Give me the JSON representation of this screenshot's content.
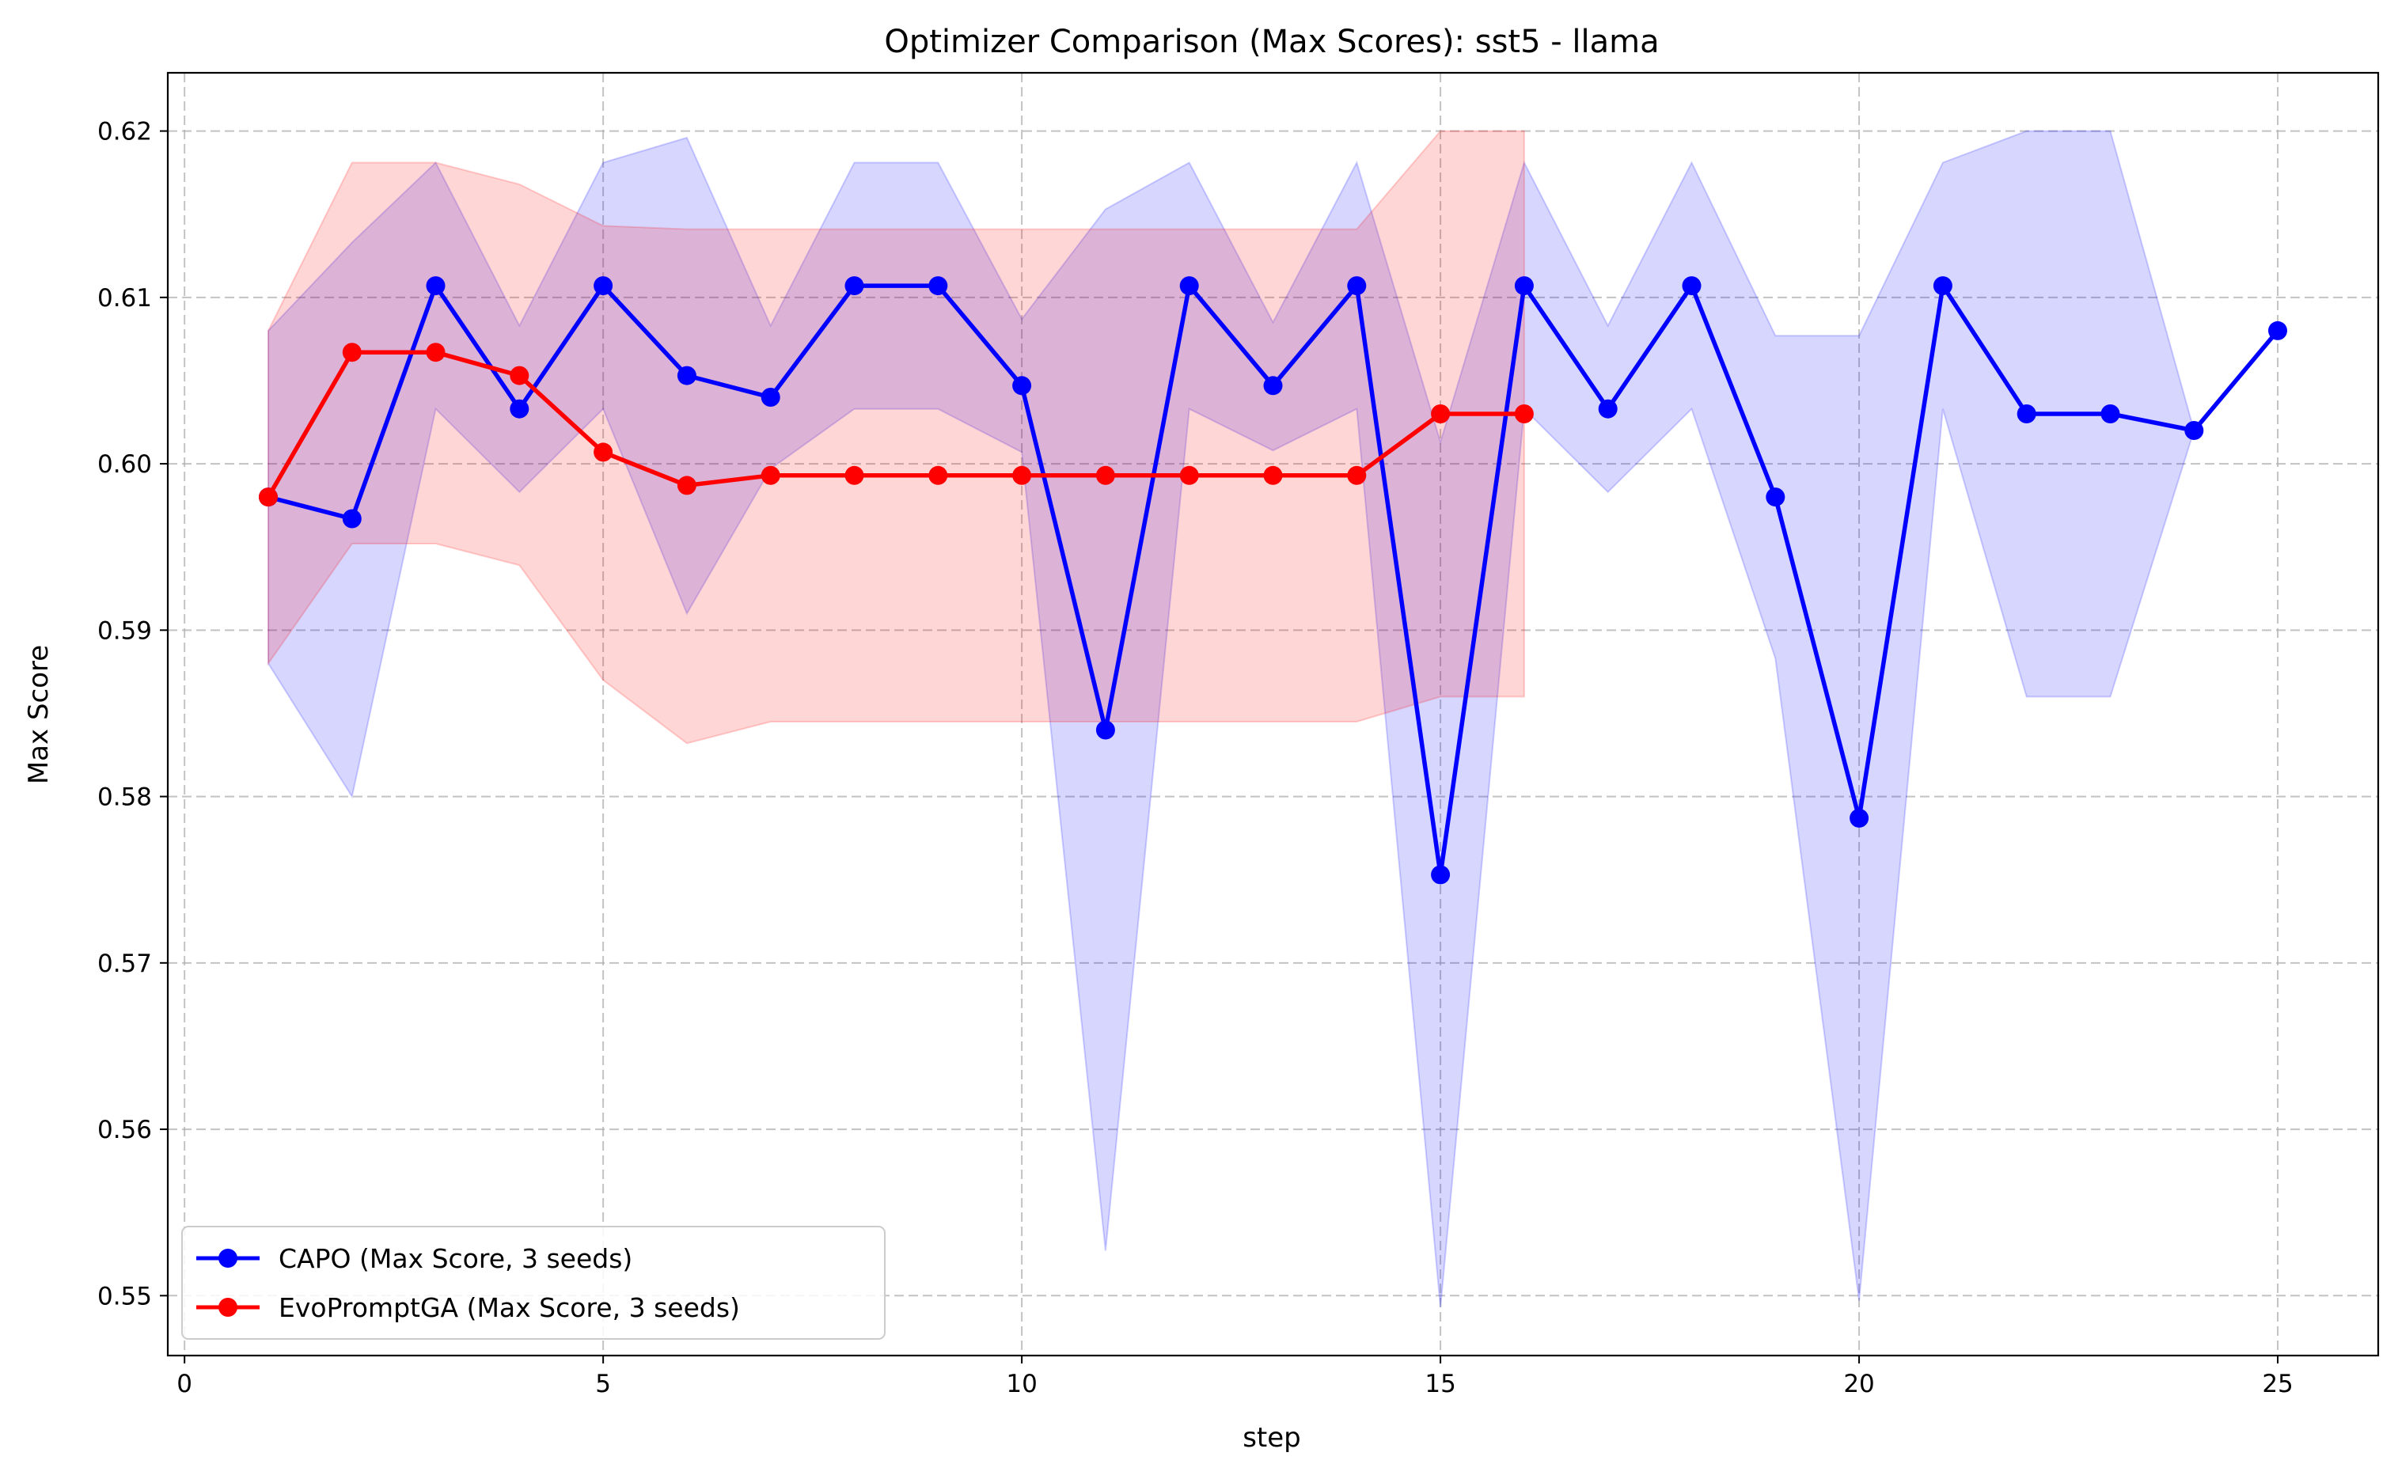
{
  "chart_data": {
    "type": "line",
    "title": "Optimizer Comparison (Max Scores): sst5 - llama",
    "xlabel": "step",
    "ylabel": "Max Score",
    "xlim": [
      -0.2,
      26.2
    ],
    "ylim": [
      0.5464,
      0.6235
    ],
    "xticks": [
      0,
      5,
      10,
      15,
      20,
      25
    ],
    "yticks": [
      0.55,
      0.56,
      0.57,
      0.58,
      0.59,
      0.6,
      0.61,
      0.62
    ],
    "ytick_labels": [
      "0.55",
      "0.56",
      "0.57",
      "0.58",
      "0.59",
      "0.60",
      "0.61",
      "0.62"
    ],
    "grid": true,
    "legend_position": "lower-left",
    "series": [
      {
        "name": "CAPO (Max Score, 3 seeds)",
        "color": "#0000ff",
        "band_color": "#0000ff",
        "x": [
          1,
          2,
          3,
          4,
          5,
          6,
          7,
          8,
          9,
          10,
          11,
          12,
          13,
          14,
          15,
          16,
          17,
          18,
          19,
          20,
          21,
          22,
          23,
          24,
          25
        ],
        "values": [
          0.598,
          0.5967,
          0.6107,
          0.6033,
          0.6107,
          0.6053,
          0.604,
          0.6107,
          0.6107,
          0.6047,
          0.584,
          0.6107,
          0.6047,
          0.6107,
          0.5753,
          0.6107,
          0.6033,
          0.6107,
          0.598,
          0.5787,
          0.6107,
          0.603,
          0.603,
          0.602,
          0.608
        ],
        "lower": [
          0.588,
          0.58,
          0.6033,
          0.5983,
          0.6033,
          0.591,
          0.5997,
          0.6033,
          0.6033,
          0.6007,
          0.5527,
          0.6033,
          0.6008,
          0.6033,
          0.5493,
          0.6033,
          0.5983,
          0.6033,
          0.5883,
          0.5497,
          0.6033,
          0.586,
          0.586,
          0.602,
          0.608
        ],
        "upper": [
          0.608,
          0.6133,
          0.6181,
          0.6083,
          0.6181,
          0.6196,
          0.6083,
          0.6181,
          0.6181,
          0.6087,
          0.6153,
          0.6181,
          0.6085,
          0.6181,
          0.6013,
          0.6181,
          0.6083,
          0.6181,
          0.6077,
          0.6077,
          0.6181,
          0.62,
          0.62,
          0.602,
          0.608
        ]
      },
      {
        "name": "EvoPromptGA (Max Score, 3 seeds)",
        "color": "#ff0000",
        "band_color": "#ff0000",
        "x": [
          1,
          2,
          3,
          4,
          5,
          6,
          7,
          8,
          9,
          10,
          11,
          12,
          13,
          14,
          15,
          16
        ],
        "values": [
          0.598,
          0.6067,
          0.6067,
          0.6053,
          0.6007,
          0.5987,
          0.5993,
          0.5993,
          0.5993,
          0.5993,
          0.5993,
          0.5993,
          0.5993,
          0.5993,
          0.603,
          0.603
        ],
        "lower": [
          0.588,
          0.5952,
          0.5952,
          0.5939,
          0.587,
          0.5832,
          0.5845,
          0.5845,
          0.5845,
          0.5845,
          0.5845,
          0.5845,
          0.5845,
          0.5845,
          0.586,
          0.586
        ],
        "upper": [
          0.608,
          0.6181,
          0.6181,
          0.6168,
          0.6143,
          0.6141,
          0.6141,
          0.6141,
          0.6141,
          0.6141,
          0.6141,
          0.6141,
          0.6141,
          0.6141,
          0.62,
          0.62
        ]
      }
    ]
  }
}
